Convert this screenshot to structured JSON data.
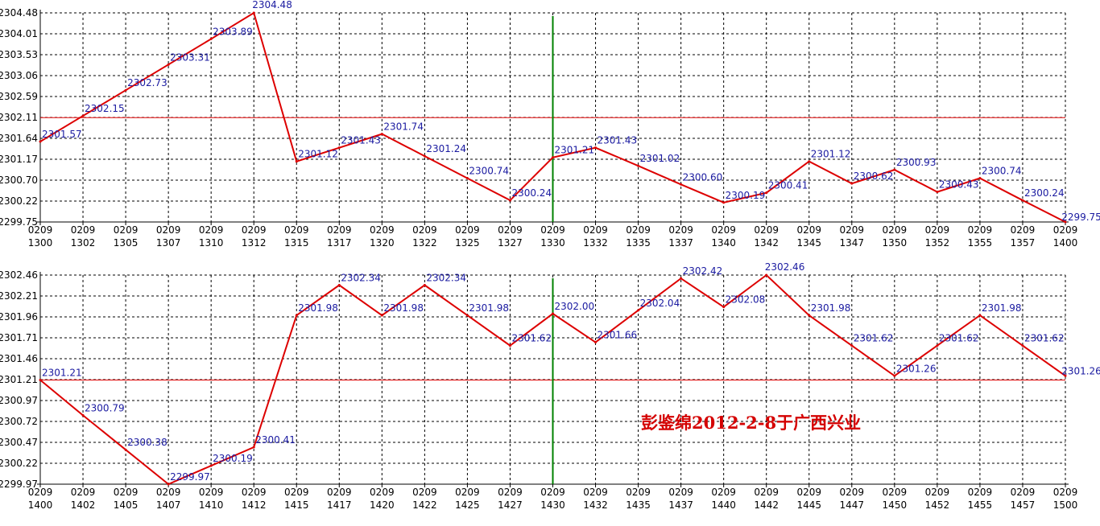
{
  "watermark": "彭鉴绵2012-2-8于广西兴业",
  "colors": {
    "line": "#dd0000",
    "ref_line": "#dd0000",
    "marker": "#008000",
    "label": "#1a1aa0",
    "grid": "#000000"
  },
  "chart_data": [
    {
      "type": "line",
      "grid": true,
      "x_date": "0209",
      "x": [
        "1300",
        "1302",
        "1305",
        "1307",
        "1310",
        "1312",
        "1315",
        "1317",
        "1320",
        "1322",
        "1325",
        "1327",
        "1330",
        "1332",
        "1335",
        "1337",
        "1340",
        "1342",
        "1345",
        "1347",
        "1350",
        "1352",
        "1355",
        "1357",
        "1400"
      ],
      "values": [
        2301.57,
        2302.15,
        2302.73,
        2303.31,
        2303.89,
        2304.48,
        2301.12,
        2301.43,
        2301.74,
        2301.24,
        2300.74,
        2300.24,
        2301.21,
        2301.43,
        2301.02,
        2300.6,
        2300.19,
        2300.41,
        2301.12,
        2300.62,
        2300.93,
        2300.43,
        2300.74,
        2300.24,
        2299.75
      ],
      "y_ticks": [
        "2304.48",
        "2304.01",
        "2303.53",
        "2303.06",
        "2302.59",
        "2302.11",
        "2301.64",
        "2301.17",
        "2300.70",
        "2300.22",
        "2299.75"
      ],
      "ylim": [
        2299.75,
        2304.48
      ],
      "reference_value": 2302.11,
      "marker_x": "1330"
    },
    {
      "type": "line",
      "grid": true,
      "x_date": "0209",
      "x": [
        "1400",
        "1402",
        "1405",
        "1407",
        "1410",
        "1412",
        "1415",
        "1417",
        "1420",
        "1422",
        "1425",
        "1427",
        "1430",
        "1432",
        "1435",
        "1437",
        "1440",
        "1442",
        "1445",
        "1447",
        "1450",
        "1452",
        "1455",
        "1457",
        "1500"
      ],
      "values": [
        2301.21,
        2300.79,
        2300.38,
        2299.97,
        2300.19,
        2300.41,
        2301.98,
        2302.34,
        2301.98,
        2302.34,
        2301.98,
        2301.62,
        2302.0,
        2301.66,
        2302.04,
        2302.42,
        2302.08,
        2302.46,
        2301.98,
        2301.62,
        2301.26,
        2301.62,
        2301.98,
        2301.62,
        2301.26
      ],
      "y_ticks": [
        "2302.46",
        "2302.21",
        "2301.96",
        "2301.71",
        "2301.46",
        "2301.21",
        "2300.97",
        "2300.72",
        "2300.47",
        "2300.22",
        "2299.97"
      ],
      "ylim": [
        2299.97,
        2302.46
      ],
      "reference_value": 2301.21,
      "marker_x": "1430"
    }
  ]
}
